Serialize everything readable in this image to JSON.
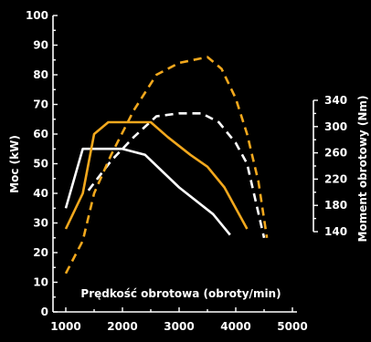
{
  "colors": {
    "background": "#000000",
    "axis": "#ffffff",
    "orange": "#f2a81d",
    "white": "#ffffff"
  },
  "chart_data": {
    "type": "line",
    "xlabel": "Prędkość obrotowa (obroty/min)",
    "ylabel": "Moc (kW)",
    "y2label": "Moment obrotowy (Nm)",
    "xlim": [
      1000,
      5000
    ],
    "ylim": [
      0,
      100
    ],
    "y2lim": [
      140,
      340
    ],
    "x_ticks": [
      "1000",
      "2000",
      "3000",
      "4000",
      "5000"
    ],
    "y_ticks": [
      "0",
      "10",
      "20",
      "30",
      "40",
      "50",
      "60",
      "70",
      "80",
      "90",
      "100"
    ],
    "y2_ticks": [
      "140",
      "180",
      "220",
      "260",
      "300",
      "340"
    ],
    "grid": false,
    "series": [
      {
        "color": "#ffffff",
        "dash": "solid",
        "axis": "left",
        "points": [
          [
            1000,
            35
          ],
          [
            1300,
            55
          ],
          [
            2000,
            55
          ],
          [
            2400,
            53
          ],
          [
            3000,
            42
          ],
          [
            3600,
            33
          ],
          [
            3900,
            26
          ]
        ]
      },
      {
        "color": "#ffffff",
        "dash": "dashed",
        "axis": "left",
        "points": [
          [
            1400,
            41
          ],
          [
            1800,
            51
          ],
          [
            2200,
            59
          ],
          [
            2600,
            66
          ],
          [
            3000,
            67
          ],
          [
            3400,
            67
          ],
          [
            3700,
            64
          ],
          [
            4000,
            57
          ],
          [
            4200,
            50
          ],
          [
            4500,
            25
          ]
        ]
      },
      {
        "color": "#f2a81d",
        "dash": "solid",
        "axis": "left",
        "points": [
          [
            1000,
            28
          ],
          [
            1300,
            40
          ],
          [
            1500,
            60
          ],
          [
            1750,
            64
          ],
          [
            2000,
            64
          ],
          [
            2500,
            64
          ],
          [
            2800,
            59
          ],
          [
            3200,
            53
          ],
          [
            3500,
            49
          ],
          [
            3800,
            42
          ],
          [
            4200,
            28
          ]
        ]
      },
      {
        "color": "#f2a81d",
        "dash": "dashed",
        "axis": "left",
        "points": [
          [
            1000,
            13
          ],
          [
            1300,
            24
          ],
          [
            1500,
            40
          ],
          [
            1800,
            53
          ],
          [
            2200,
            68
          ],
          [
            2600,
            80
          ],
          [
            3000,
            84
          ],
          [
            3500,
            86
          ],
          [
            3750,
            82
          ],
          [
            4000,
            72
          ],
          [
            4200,
            60
          ],
          [
            4400,
            44
          ],
          [
            4550,
            25
          ]
        ]
      }
    ]
  }
}
